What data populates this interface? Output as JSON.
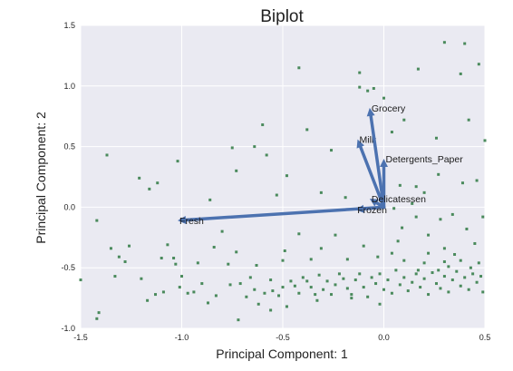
{
  "chart_data": {
    "type": "scatter",
    "title": "Biplot",
    "xlabel": "Principal Component: 1",
    "ylabel": "Principal Component: 2",
    "xlim": [
      -1.5,
      0.5
    ],
    "ylim": [
      -1.0,
      1.5
    ],
    "xticks": [
      "-1.5",
      "-1.0",
      "-0.5",
      "0.0",
      "0.5"
    ],
    "yticks": [
      "-1.0",
      "-0.5",
      "0.0",
      "0.5",
      "1.0",
      "1.5"
    ],
    "grid": true,
    "colors": {
      "background": "#eaeaf2",
      "grid": "#ffffff",
      "points": "#4a8a5c",
      "vectors": "#4c72b0"
    },
    "vectors": [
      {
        "name": "Fresh",
        "x": -1.02,
        "y": -0.11
      },
      {
        "name": "Milk",
        "x": -0.13,
        "y": 0.56
      },
      {
        "name": "Grocery",
        "x": -0.07,
        "y": 0.82
      },
      {
        "name": "Frozen",
        "x": -0.14,
        "y": -0.02
      },
      {
        "name": "Detergents_Paper",
        "x": 0.0,
        "y": 0.4
      },
      {
        "name": "Delicatessen",
        "x": -0.07,
        "y": 0.07
      }
    ],
    "points": [
      [
        0.3,
        1.36
      ],
      [
        0.4,
        1.35
      ],
      [
        0.47,
        1.18
      ],
      [
        0.38,
        1.1
      ],
      [
        0.17,
        1.14
      ],
      [
        -0.42,
        1.15
      ],
      [
        -0.12,
        1.11
      ],
      [
        -0.08,
        0.96
      ],
      [
        -0.12,
        0.99
      ],
      [
        -0.05,
        0.98
      ],
      [
        0.0,
        0.9
      ],
      [
        0.1,
        0.72
      ],
      [
        0.42,
        0.72
      ],
      [
        0.26,
        0.57
      ],
      [
        0.5,
        0.55
      ],
      [
        -0.6,
        0.68
      ],
      [
        -0.26,
        0.47
      ],
      [
        -0.64,
        0.5
      ],
      [
        -0.75,
        0.49
      ],
      [
        -0.38,
        0.64
      ],
      [
        0.04,
        0.62
      ],
      [
        -0.58,
        0.43
      ],
      [
        -1.37,
        0.43
      ],
      [
        -1.02,
        0.38
      ],
      [
        -0.73,
        0.3
      ],
      [
        -0.48,
        0.26
      ],
      [
        -1.21,
        0.24
      ],
      [
        -1.16,
        0.15
      ],
      [
        -1.12,
        0.2
      ],
      [
        -0.86,
        0.06
      ],
      [
        -0.53,
        0.1
      ],
      [
        -0.31,
        0.12
      ],
      [
        -0.19,
        0.08
      ],
      [
        -0.02,
        0.01
      ],
      [
        0.08,
        0.18
      ],
      [
        0.2,
        0.12
      ],
      [
        0.27,
        0.27
      ],
      [
        0.39,
        0.2
      ],
      [
        0.46,
        0.22
      ],
      [
        0.16,
        0.17
      ],
      [
        0.14,
        0.03
      ],
      [
        0.05,
        -0.01
      ],
      [
        0.16,
        -0.08
      ],
      [
        0.28,
        -0.1
      ],
      [
        0.34,
        -0.06
      ],
      [
        0.49,
        -0.08
      ],
      [
        0.09,
        -0.17
      ],
      [
        0.22,
        -0.23
      ],
      [
        0.41,
        -0.18
      ],
      [
        0.07,
        -0.28
      ],
      [
        0.3,
        -0.34
      ],
      [
        0.45,
        -0.3
      ],
      [
        0.04,
        -0.38
      ],
      [
        0.22,
        -0.38
      ],
      [
        0.35,
        -0.39
      ],
      [
        -1.42,
        -0.11
      ],
      [
        -1.26,
        -0.32
      ],
      [
        -1.07,
        -0.31
      ],
      [
        -1.04,
        -0.42
      ],
      [
        -0.8,
        -0.2
      ],
      [
        -0.42,
        -0.22
      ],
      [
        -0.24,
        -0.23
      ],
      [
        -0.84,
        -0.33
      ],
      [
        -0.73,
        -0.37
      ],
      [
        -0.49,
        -0.36
      ],
      [
        -0.31,
        -0.34
      ],
      [
        -0.1,
        -0.32
      ],
      [
        -1.35,
        -0.34
      ],
      [
        -1.31,
        -0.41
      ],
      [
        -1.28,
        -0.45
      ],
      [
        -1.03,
        -0.47
      ],
      [
        -1.1,
        -0.42
      ],
      [
        -0.92,
        -0.46
      ],
      [
        -0.77,
        -0.47
      ],
      [
        -0.63,
        -0.48
      ],
      [
        -0.5,
        -0.44
      ],
      [
        -0.36,
        -0.43
      ],
      [
        -0.18,
        -0.43
      ],
      [
        -0.03,
        -0.41
      ],
      [
        0.1,
        -0.44
      ],
      [
        0.2,
        -0.46
      ],
      [
        0.3,
        -0.45
      ],
      [
        0.38,
        -0.44
      ],
      [
        0.47,
        -0.46
      ],
      [
        -1.5,
        -0.6
      ],
      [
        -1.41,
        -0.87
      ],
      [
        -1.42,
        -0.92
      ],
      [
        -1.33,
        -0.57
      ],
      [
        -1.2,
        -0.59
      ],
      [
        -1.17,
        -0.77
      ],
      [
        -1.13,
        -0.72
      ],
      [
        -1.09,
        -0.7
      ],
      [
        -1.01,
        -0.66
      ],
      [
        -0.97,
        -0.71
      ],
      [
        -0.94,
        -0.7
      ],
      [
        -0.87,
        -0.79
      ],
      [
        -0.83,
        -0.73
      ],
      [
        -0.72,
        -0.93
      ],
      [
        -0.71,
        -0.63
      ],
      [
        -0.68,
        -0.74
      ],
      [
        -0.64,
        -0.68
      ],
      [
        -0.62,
        -0.8
      ],
      [
        -0.59,
        -0.71
      ],
      [
        -0.56,
        -0.6
      ],
      [
        -0.55,
        -0.69
      ],
      [
        -0.52,
        -0.73
      ],
      [
        -0.5,
        -0.66
      ],
      [
        -0.48,
        -0.82
      ],
      [
        -0.46,
        -0.61
      ],
      [
        -0.44,
        -0.65
      ],
      [
        -0.42,
        -0.71
      ],
      [
        -0.4,
        -0.58
      ],
      [
        -0.38,
        -0.61
      ],
      [
        -0.36,
        -0.66
      ],
      [
        -0.34,
        -0.72
      ],
      [
        -0.32,
        -0.56
      ],
      [
        -0.3,
        -0.68
      ],
      [
        -0.28,
        -0.61
      ],
      [
        -0.26,
        -0.72
      ],
      [
        -0.24,
        -0.64
      ],
      [
        -0.22,
        -0.55
      ],
      [
        -0.2,
        -0.59
      ],
      [
        -0.18,
        -0.67
      ],
      [
        -0.16,
        -0.72
      ],
      [
        -0.14,
        -0.6
      ],
      [
        -0.12,
        -0.55
      ],
      [
        -0.1,
        -0.66
      ],
      [
        -0.08,
        -0.74
      ],
      [
        -0.06,
        -0.58
      ],
      [
        -0.04,
        -0.63
      ],
      [
        -0.02,
        -0.55
      ],
      [
        0.0,
        -0.68
      ],
      [
        0.02,
        -0.6
      ],
      [
        0.04,
        -0.71
      ],
      [
        0.06,
        -0.52
      ],
      [
        0.08,
        -0.64
      ],
      [
        0.1,
        -0.58
      ],
      [
        0.12,
        -0.69
      ],
      [
        0.14,
        -0.62
      ],
      [
        0.16,
        -0.55
      ],
      [
        0.18,
        -0.66
      ],
      [
        0.2,
        -0.59
      ],
      [
        0.22,
        -0.72
      ],
      [
        0.24,
        -0.54
      ],
      [
        0.26,
        -0.63
      ],
      [
        0.28,
        -0.67
      ],
      [
        0.3,
        -0.57
      ],
      [
        0.32,
        -0.7
      ],
      [
        0.34,
        -0.6
      ],
      [
        0.36,
        -0.53
      ],
      [
        0.38,
        -0.65
      ],
      [
        0.4,
        -0.58
      ],
      [
        0.42,
        -0.68
      ],
      [
        0.44,
        -0.55
      ],
      [
        0.46,
        -0.62
      ],
      [
        0.48,
        -0.57
      ],
      [
        0.49,
        -0.7
      ],
      [
        0.32,
        -0.49
      ],
      [
        0.27,
        -0.52
      ],
      [
        0.17,
        -0.52
      ],
      [
        0.43,
        -0.5
      ],
      [
        -0.16,
        -0.75
      ],
      [
        -0.56,
        -0.85
      ],
      [
        -0.76,
        -0.64
      ],
      [
        -0.9,
        -0.63
      ],
      [
        -0.33,
        -0.77
      ],
      [
        -0.02,
        -0.8
      ],
      [
        -0.66,
        -0.58
      ],
      [
        -1.0,
        -0.57
      ]
    ]
  }
}
